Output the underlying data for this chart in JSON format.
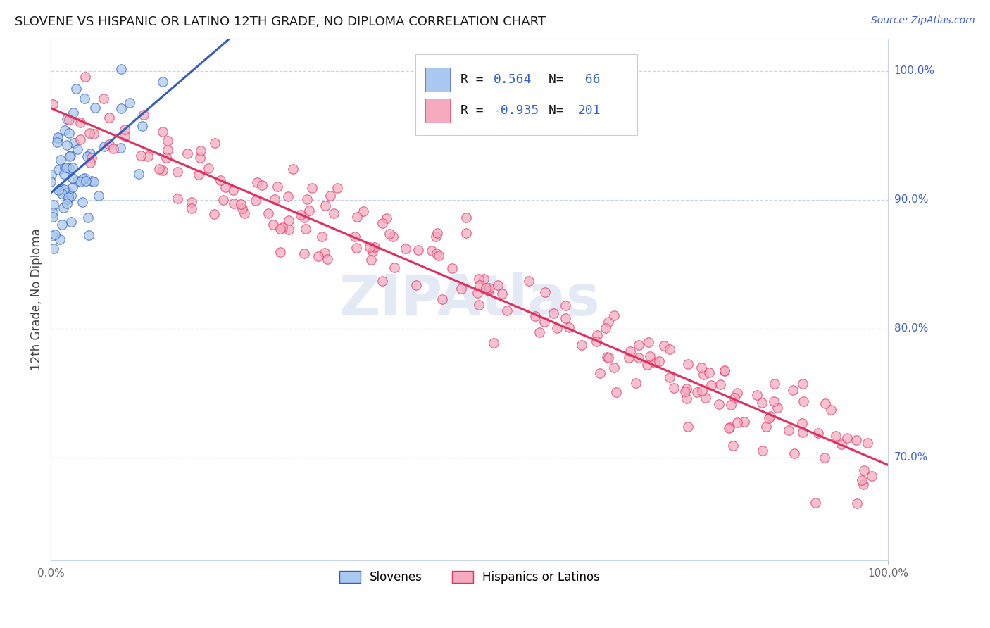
{
  "title": "SLOVENE VS HISPANIC OR LATINO 12TH GRADE, NO DIPLOMA CORRELATION CHART",
  "source": "Source: ZipAtlas.com",
  "ylabel": "12th Grade, No Diploma",
  "slovene_fc": "#aac8f0",
  "slovene_ec": "#3060c0",
  "hispanic_fc": "#f5aabf",
  "hispanic_ec": "#e03060",
  "grid_color": "#c8d4e8",
  "bg_color": "#ffffff",
  "blue_label_color": "#4060d0",
  "legend_value_color": "#3060d0",
  "watermark_color": "#cdd8ee",
  "r1": 0.564,
  "n1": 66,
  "r2": -0.935,
  "n2": 201,
  "xmin": 0.0,
  "xmax": 1.0,
  "ymin": 0.62,
  "ymax": 1.025,
  "ytick_labels": [
    "100.0%",
    "90.0%",
    "80.0%",
    "70.0%"
  ],
  "ytick_positions": [
    1.0,
    0.9,
    0.8,
    0.7
  ],
  "xtick_labels": [
    "0.0%",
    "100.0%"
  ],
  "xtick_positions": [
    0.0,
    1.0
  ]
}
